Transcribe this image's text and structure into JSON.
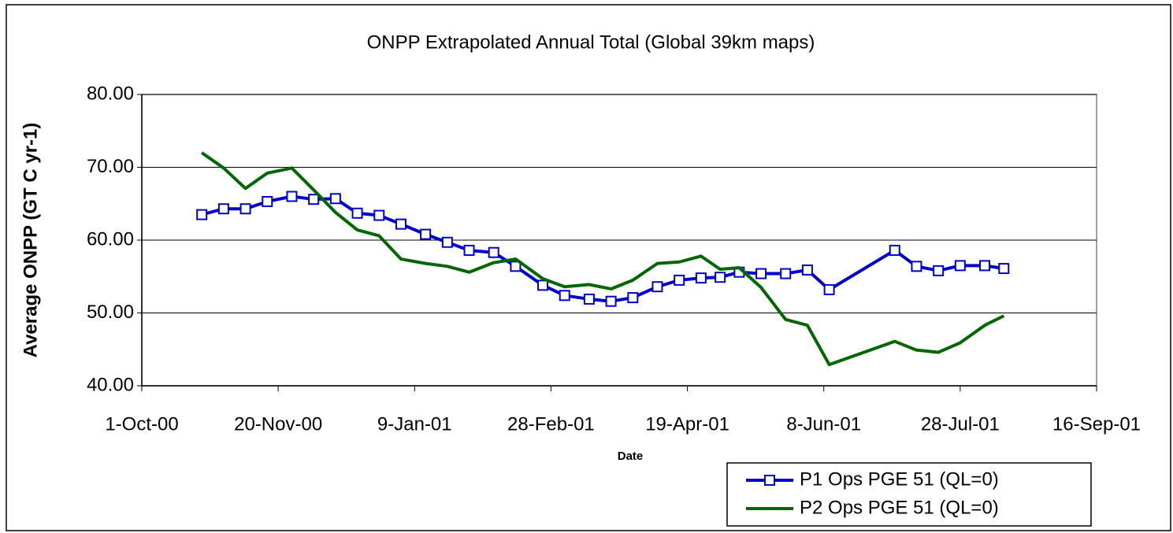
{
  "chart_data": {
    "type": "line",
    "title": "ONPP Extrapolated Annual Total (Global 39km maps)",
    "xlabel": "Date",
    "ylabel": "Average ONPP (GT C yr-1)",
    "x": [
      "2000-10-23",
      "2000-10-31",
      "2000-11-08",
      "2000-11-16",
      "2000-11-25",
      "2000-12-03",
      "2000-12-11",
      "2000-12-19",
      "2000-12-27",
      "2001-01-04",
      "2001-01-13",
      "2001-01-21",
      "2001-01-29",
      "2001-02-07",
      "2001-02-15",
      "2001-02-25",
      "2001-03-05",
      "2001-03-14",
      "2001-03-22",
      "2001-03-30",
      "2001-04-08",
      "2001-04-16",
      "2001-04-24",
      "2001-05-01",
      "2001-05-08",
      "2001-05-16",
      "2001-05-25",
      "2001-06-02",
      "2001-06-10",
      "2001-07-04",
      "2001-07-12",
      "2001-07-20",
      "2001-07-28",
      "2001-08-06",
      "2001-08-13"
    ],
    "series": [
      {
        "name": "P1 Ops PGE 51 (QL=0)",
        "color": "#0000cc",
        "marker": "square",
        "values": [
          63.5,
          64.3,
          64.3,
          65.3,
          66.0,
          65.6,
          65.7,
          63.7,
          63.4,
          62.2,
          60.8,
          59.7,
          58.6,
          58.3,
          56.4,
          53.8,
          52.4,
          51.9,
          51.6,
          52.1,
          53.6,
          54.5,
          54.8,
          54.9,
          55.6,
          55.4,
          55.4,
          55.9,
          53.2,
          58.6,
          56.4,
          55.8,
          56.5,
          56.5,
          56.1
        ]
      },
      {
        "name": "P2 Ops PGE 51 (QL=0)",
        "color": "#006600",
        "values": [
          72.0,
          69.9,
          67.1,
          69.2,
          69.9,
          66.9,
          63.8,
          61.4,
          60.6,
          57.4,
          56.8,
          56.4,
          55.6,
          56.9,
          57.4,
          54.7,
          53.6,
          53.9,
          53.3,
          54.5,
          56.8,
          57.0,
          57.8,
          56.0,
          56.2,
          53.5,
          49.1,
          48.3,
          42.9,
          46.1,
          44.9,
          44.6,
          45.9,
          48.3,
          49.6
        ]
      }
    ],
    "xlim": [
      "2000-10-01",
      "2001-09-16"
    ],
    "xticks": [
      {
        "value": "2000-10-01",
        "label": "1-Oct-00"
      },
      {
        "value": "2000-11-20",
        "label": "20-Nov-00"
      },
      {
        "value": "2001-01-09",
        "label": "9-Jan-01"
      },
      {
        "value": "2001-02-28",
        "label": "28-Feb-01"
      },
      {
        "value": "2001-04-19",
        "label": "19-Apr-01"
      },
      {
        "value": "2001-06-08",
        "label": "8-Jun-01"
      },
      {
        "value": "2001-07-28",
        "label": "28-Jul-01"
      },
      {
        "value": "2001-09-16",
        "label": "16-Sep-01"
      }
    ],
    "ylim": [
      40,
      80
    ],
    "yticks": [
      {
        "value": 40,
        "label": "40.00"
      },
      {
        "value": 50,
        "label": "50.00"
      },
      {
        "value": 60,
        "label": "60.00"
      },
      {
        "value": 70,
        "label": "70.00"
      },
      {
        "value": 80,
        "label": "80.00"
      }
    ],
    "grid": true,
    "legend": "bottom-right"
  }
}
